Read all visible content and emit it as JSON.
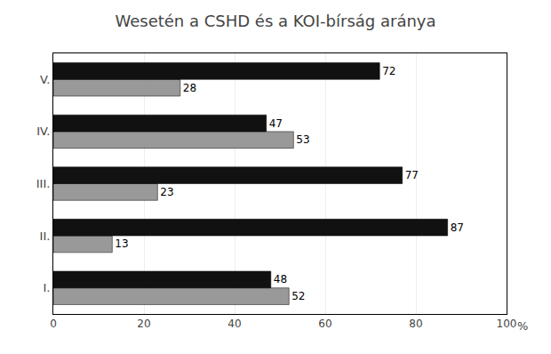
{
  "chart_data": {
    "type": "bar",
    "orientation": "horizontal",
    "title": "Wesetén a CSHD és a KOI-bírság aránya",
    "xlabel": "%",
    "categories": [
      "I.",
      "II.",
      "III.",
      "IV.",
      "V."
    ],
    "series": [
      {
        "color": "#111111",
        "values": [
          48,
          87,
          77,
          47,
          72
        ]
      },
      {
        "color": "#999999",
        "values": [
          52,
          13,
          23,
          53,
          28
        ]
      }
    ],
    "xlim": [
      0,
      100
    ],
    "xticks": [
      0,
      20,
      40,
      60,
      80,
      100
    ],
    "grid": true,
    "data_labels": true
  }
}
